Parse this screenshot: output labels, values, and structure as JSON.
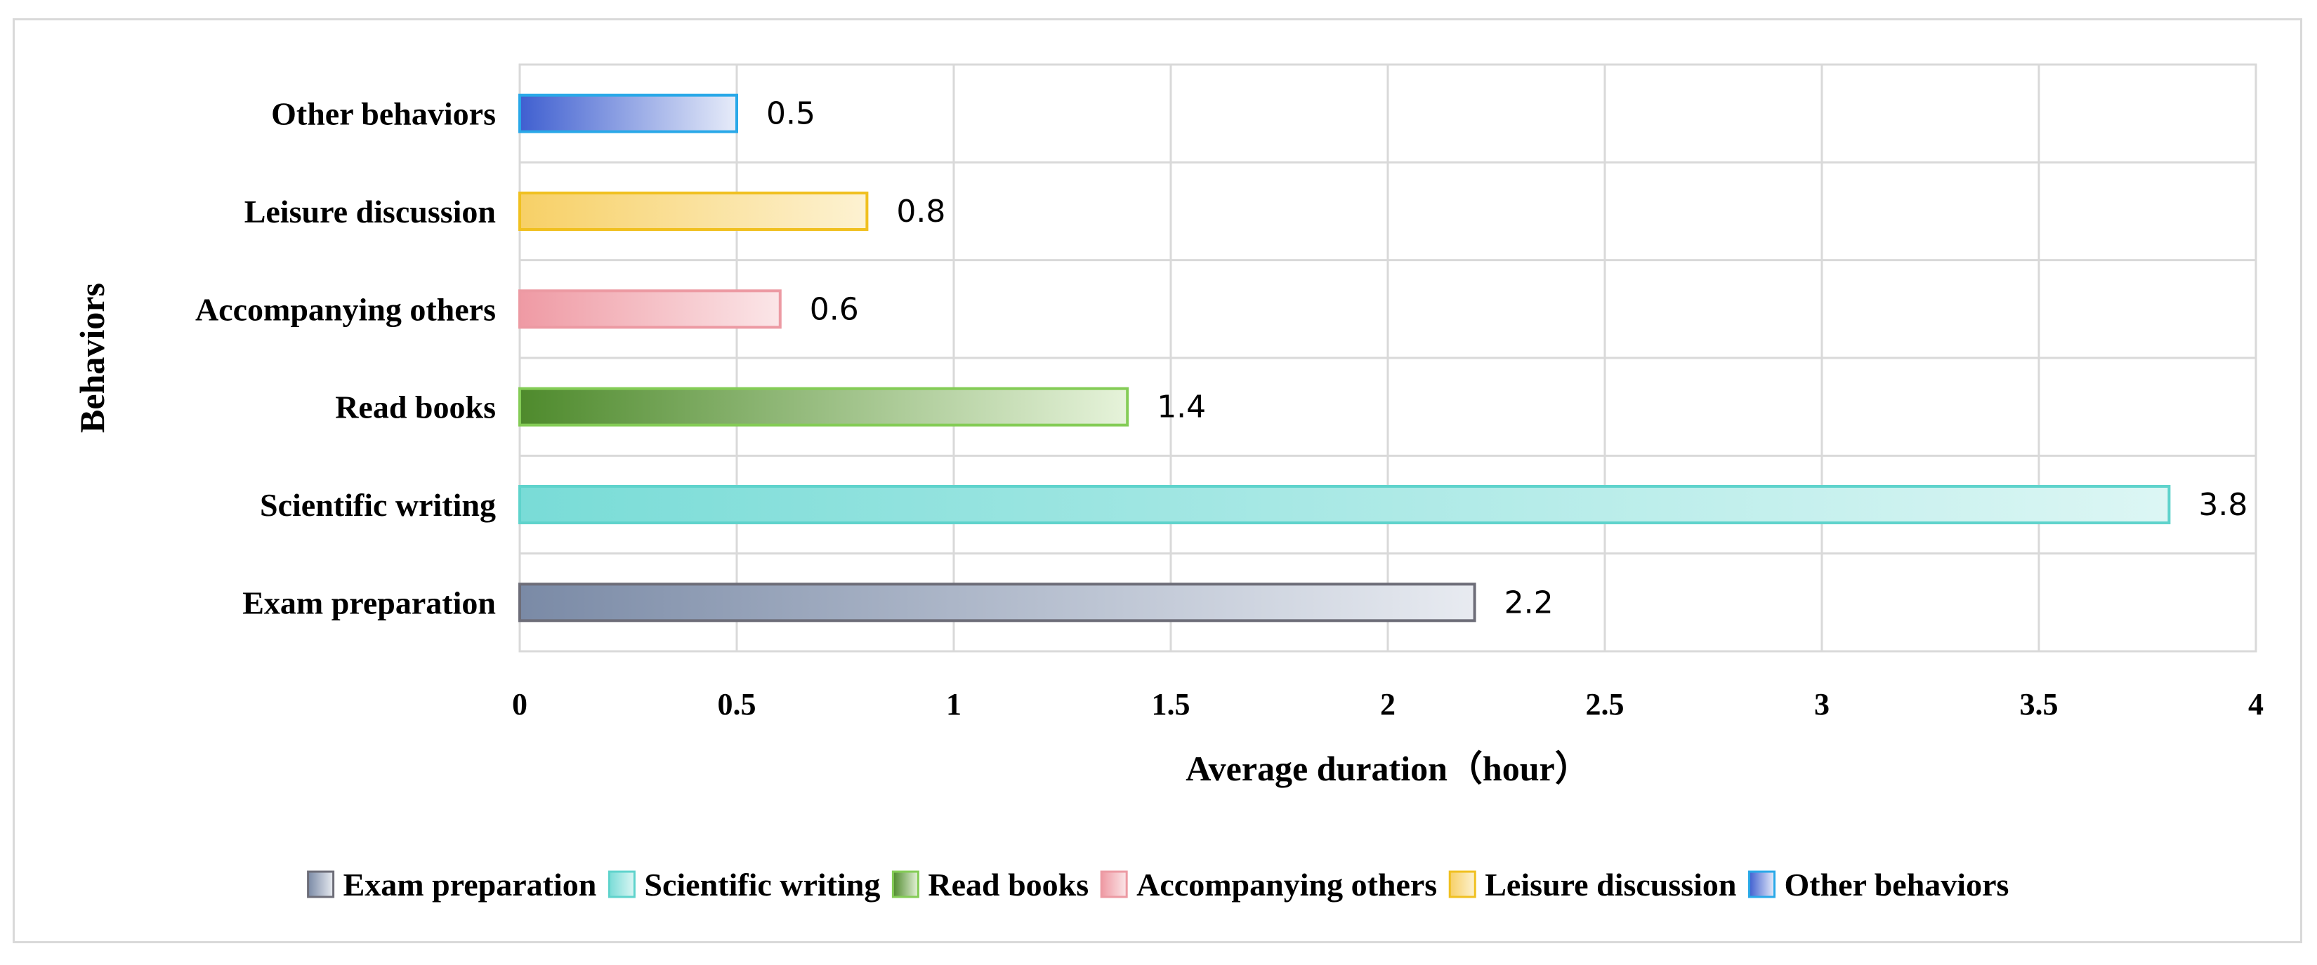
{
  "chart_data": {
    "type": "bar",
    "orientation": "horizontal",
    "categories": [
      "Exam preparation",
      "Scientific writing",
      "Read books",
      "Accompanying others",
      "Leisure discussion",
      "Other behaviors"
    ],
    "values": [
      2.2,
      3.8,
      1.4,
      0.6,
      0.8,
      0.5
    ],
    "data_labels": [
      "2.2",
      "3.8",
      "1.4",
      "0.6",
      "0.8",
      "0.5"
    ],
    "xlabel": "Average duration（hour）",
    "ylabel": "Behaviors",
    "xlim": [
      0,
      4
    ],
    "x_ticks": [
      0,
      0.5,
      1,
      1.5,
      2,
      2.5,
      3,
      3.5,
      4
    ],
    "x_tick_labels": [
      "0",
      "0.5",
      "1",
      "1.5",
      "2",
      "2.5",
      "3",
      "3.5",
      "4"
    ],
    "grid": true,
    "legend_position": "bottom",
    "legend": [
      "Exam preparation",
      "Scientific writing",
      "Read books",
      "Accompanying others",
      "Leisure discussion",
      "Other behaviors"
    ],
    "colors": {
      "Exam preparation": {
        "start": "#7a8aa6",
        "end": "#e8ebf1",
        "stroke": "#6d6d78"
      },
      "Scientific writing": {
        "start": "#79dcd7",
        "end": "#dcf6f4",
        "stroke": "#5fd3cc"
      },
      "Read books": {
        "start": "#4e8a2c",
        "end": "#e6f3da",
        "stroke": "#84cc56"
      },
      "Accompanying others": {
        "start": "#ef9aa4",
        "end": "#fbe6e8",
        "stroke": "#ec9aa3"
      },
      "Leisure discussion": {
        "start": "#f7d066",
        "end": "#fdf2d2",
        "stroke": "#f0c020"
      },
      "Other behaviors": {
        "start": "#3f5fd0",
        "end": "#e7ecf9",
        "stroke": "#29a8e8"
      }
    }
  }
}
